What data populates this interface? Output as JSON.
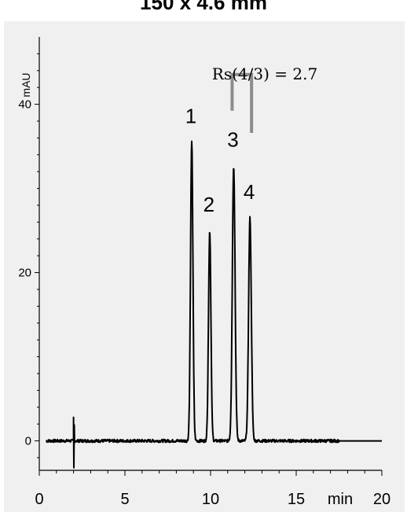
{
  "title": "150 x 4.6 mm",
  "chart_data": {
    "type": "line",
    "title": "150 x 4.6 mm",
    "xlabel": "min",
    "ylabel": "mAU",
    "xlim": [
      0,
      20
    ],
    "ylim": [
      -3.5,
      48
    ],
    "xticks": [
      0,
      5,
      10,
      15,
      20
    ],
    "yticks": [
      0,
      20,
      40
    ],
    "grid": false,
    "legend": "none",
    "peaks": [
      {
        "label": "1",
        "time": 8.9,
        "height": 35.5,
        "width": 0.07
      },
      {
        "label": "2",
        "time": 9.95,
        "height": 25.0,
        "width": 0.07
      },
      {
        "label": "3",
        "time": 11.35,
        "height": 32.7,
        "width": 0.08
      },
      {
        "label": "4",
        "time": 12.3,
        "height": 26.5,
        "width": 0.08
      }
    ],
    "injection_time": 2.0,
    "annotation": {
      "text": "Rs(4/3) = 2.7"
    },
    "colors": {
      "trace": "#000000",
      "bracket": "#8c8c8c",
      "background": "#f0f0f0"
    }
  }
}
